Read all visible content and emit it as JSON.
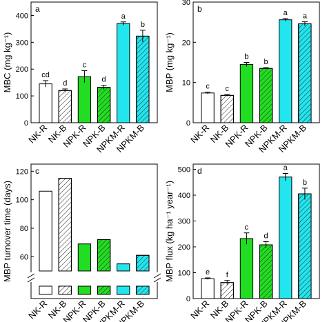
{
  "categories": [
    "NK-R",
    "NK-B",
    "NPK-R",
    "NPK-B",
    "NPKM-R",
    "NPKM-B"
  ],
  "styles": [
    {
      "fill": "#ffffff",
      "hatch": false
    },
    {
      "fill": "#ffffff",
      "hatch": true
    },
    {
      "fill": "#22dd22",
      "hatch": false
    },
    {
      "fill": "#22dd22",
      "hatch": true
    },
    {
      "fill": "#22e5ee",
      "hatch": false
    },
    {
      "fill": "#22e5ee",
      "hatch": true
    }
  ],
  "chart_data": [
    {
      "panel": "a",
      "type": "bar",
      "ylabel": "MBC (mg kg⁻¹)",
      "ylim": [
        0,
        450
      ],
      "yticks": [
        0,
        100,
        200,
        300,
        400
      ],
      "values": [
        145,
        120,
        172,
        132,
        370,
        323
      ],
      "errors": [
        12,
        6,
        22,
        8,
        6,
        22
      ],
      "letters": [
        "cd",
        "d",
        "c",
        "d",
        "a",
        "b"
      ],
      "show_xticklabels": true
    },
    {
      "panel": "b",
      "type": "bar",
      "ylabel": "MBP (mg kg⁻¹)",
      "ylim": [
        0,
        30
      ],
      "yticks": [
        0,
        10,
        20,
        30
      ],
      "values": [
        7.4,
        6.8,
        14.5,
        13.5,
        25.6,
        24.6
      ],
      "errors": [
        0.2,
        0.2,
        0.5,
        0.2,
        0.3,
        0.5
      ],
      "letters": [
        "c",
        "c",
        "b",
        "b",
        "a",
        "a"
      ],
      "show_xticklabels": true
    },
    {
      "panel": "c",
      "type": "bar",
      "ylabel": "MBP turnover time (days)",
      "ylim": [
        50,
        125
      ],
      "yticks": [
        60,
        80,
        100,
        120
      ],
      "axis_break": true,
      "values": [
        106,
        115,
        69,
        72,
        55,
        61
      ],
      "errors": [],
      "letters": [],
      "show_xticklabels": true
    },
    {
      "panel": "d",
      "type": "bar",
      "ylabel": "MBP flux (kg ha⁻¹ year⁻¹)",
      "ylim": [
        0,
        520
      ],
      "yticks": [
        0,
        100,
        200,
        300,
        400,
        500
      ],
      "values": [
        77,
        62,
        232,
        208,
        470,
        405
      ],
      "errors": [
        3,
        8,
        22,
        12,
        14,
        22
      ],
      "letters": [
        "e",
        "f",
        "c",
        "d",
        "a",
        "b"
      ],
      "show_xticklabels": true
    }
  ]
}
